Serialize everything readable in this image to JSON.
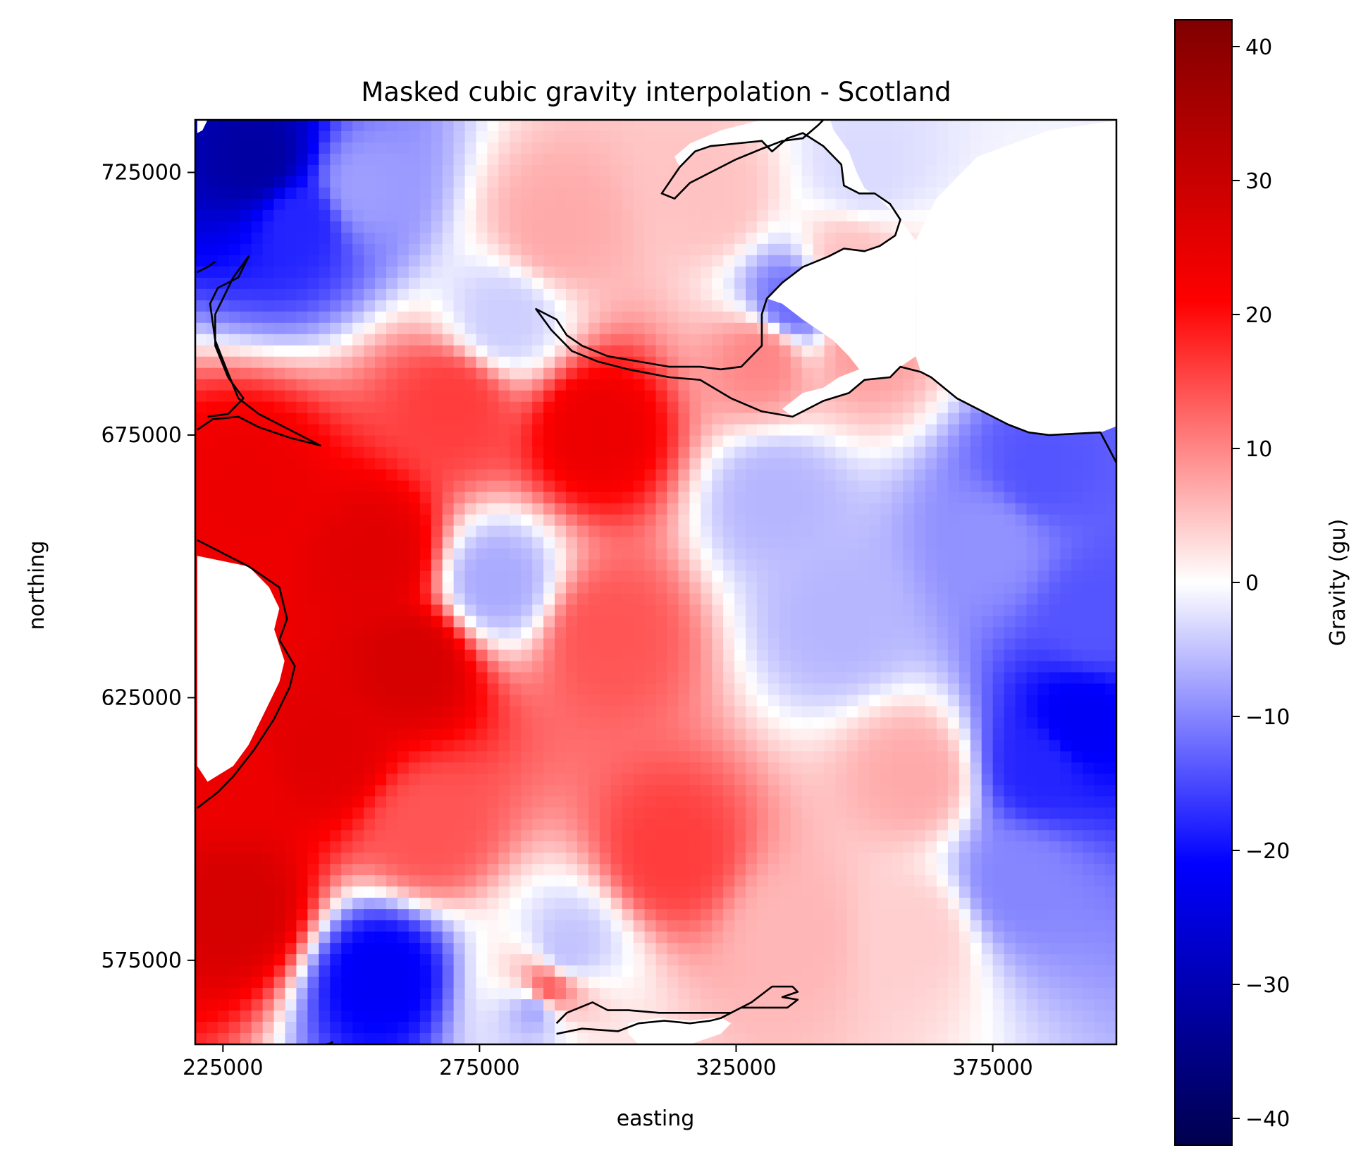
{
  "chart_data": {
    "type": "heatmap",
    "title": "Masked cubic gravity interpolation - Scotland",
    "xlabel": "easting",
    "ylabel": "northing",
    "xlim": [
      219600,
      399100
    ],
    "ylim": [
      559000,
      735000
    ],
    "xticks": [
      225000,
      275000,
      325000,
      375000
    ],
    "xtick_labels": [
      "225000",
      "275000",
      "325000",
      "375000"
    ],
    "yticks": [
      575000,
      625000,
      675000,
      725000
    ],
    "ytick_labels": [
      "575000",
      "625000",
      "675000",
      "725000"
    ],
    "colorbar": {
      "label": "Gravity (gu)",
      "colormap": "seismic",
      "vmin": -42,
      "vmax": 42,
      "ticks": [
        -40,
        -30,
        -20,
        -10,
        0,
        10,
        20,
        30,
        40
      ],
      "tick_labels": [
        "−40",
        "−30",
        "−20",
        "−10",
        "0",
        "10",
        "20",
        "30",
        "40"
      ]
    },
    "colormap_stops": [
      {
        "value": -42,
        "color": "#00004d"
      },
      {
        "value": -21,
        "color": "#0000ff"
      },
      {
        "value": 0,
        "color": "#ffffff"
      },
      {
        "value": 21,
        "color": "#ff0000"
      },
      {
        "value": 42,
        "color": "#800000"
      }
    ],
    "anomalies": [
      {
        "x": 232000,
        "y": 727000,
        "value": -32
      },
      {
        "x": 240000,
        "y": 716000,
        "value": -18
      },
      {
        "x": 252000,
        "y": 722000,
        "value": -8
      },
      {
        "x": 298000,
        "y": 676000,
        "value": 24
      },
      {
        "x": 270000,
        "y": 681000,
        "value": 16
      },
      {
        "x": 255000,
        "y": 652000,
        "value": 26
      },
      {
        "x": 230000,
        "y": 665000,
        "value": 24
      },
      {
        "x": 262000,
        "y": 632000,
        "value": 28
      },
      {
        "x": 245000,
        "y": 615000,
        "value": 26
      },
      {
        "x": 228000,
        "y": 585000,
        "value": 28
      },
      {
        "x": 226000,
        "y": 610000,
        "value": 24
      },
      {
        "x": 265000,
        "y": 600000,
        "value": 14
      },
      {
        "x": 300000,
        "y": 637000,
        "value": 14
      },
      {
        "x": 312000,
        "y": 595000,
        "value": 16
      },
      {
        "x": 288000,
        "y": 569000,
        "value": 14
      },
      {
        "x": 278000,
        "y": 647000,
        "value": -7
      },
      {
        "x": 256000,
        "y": 572000,
        "value": -22
      },
      {
        "x": 286000,
        "y": 566000,
        "value": -8
      },
      {
        "x": 292000,
        "y": 577000,
        "value": -5
      },
      {
        "x": 333000,
        "y": 663000,
        "value": -6
      },
      {
        "x": 336000,
        "y": 700000,
        "value": -12
      },
      {
        "x": 280000,
        "y": 697000,
        "value": -4
      },
      {
        "x": 345000,
        "y": 640000,
        "value": -6
      },
      {
        "x": 384000,
        "y": 668000,
        "value": -14
      },
      {
        "x": 375000,
        "y": 655000,
        "value": -9
      },
      {
        "x": 395000,
        "y": 640000,
        "value": -14
      },
      {
        "x": 392000,
        "y": 620000,
        "value": -22
      },
      {
        "x": 384000,
        "y": 612000,
        "value": -18
      },
      {
        "x": 380000,
        "y": 590000,
        "value": -10
      },
      {
        "x": 350000,
        "y": 725000,
        "value": -3
      },
      {
        "x": 360000,
        "y": 610000,
        "value": 7
      },
      {
        "x": 336000,
        "y": 580000,
        "value": 6
      },
      {
        "x": 360000,
        "y": 580000,
        "value": 4
      },
      {
        "x": 320000,
        "y": 720000,
        "value": 5
      },
      {
        "x": 290000,
        "y": 714000,
        "value": 7
      },
      {
        "x": 350000,
        "y": 692000,
        "value": 8
      },
      {
        "x": 330000,
        "y": 690000,
        "value": 10
      },
      {
        "x": 347000,
        "y": 708000,
        "value": 5
      }
    ],
    "coastlines": [
      [
        [
          220000,
          655000
        ],
        [
          230000,
          650000
        ],
        [
          236000,
          646000
        ],
        [
          237500,
          640000
        ],
        [
          236000,
          636000
        ],
        [
          239000,
          631000
        ],
        [
          238000,
          627000
        ],
        [
          235000,
          621000
        ],
        [
          231000,
          615000
        ],
        [
          227000,
          610000
        ],
        [
          224000,
          607000
        ],
        [
          220000,
          604000
        ]
      ],
      [
        [
          220000,
          676000
        ],
        [
          223000,
          678000
        ],
        [
          228000,
          678500
        ],
        [
          232000,
          676500
        ],
        [
          238000,
          674500
        ],
        [
          244000,
          673000
        ],
        [
          238000,
          676000
        ],
        [
          232000,
          679000
        ],
        [
          228000,
          682000
        ],
        [
          225500,
          688000
        ],
        [
          223500,
          693000
        ],
        [
          222500,
          700000
        ],
        [
          224000,
          703000
        ],
        [
          228000,
          705000
        ],
        [
          230000,
          709000
        ],
        [
          227000,
          705000
        ],
        [
          223500,
          698000
        ],
        [
          223500,
          692000
        ],
        [
          226000,
          686000
        ],
        [
          229000,
          682000
        ],
        [
          226000,
          679000
        ],
        [
          222000,
          678500
        ]
      ],
      [
        [
          220000,
          706000
        ],
        [
          222000,
          707000
        ],
        [
          223500,
          708000
        ]
      ],
      [
        [
          343000,
          736000
        ],
        [
          341000,
          734000
        ],
        [
          338000,
          731500
        ],
        [
          334000,
          731000
        ],
        [
          330000,
          729500
        ],
        [
          325000,
          727500
        ],
        [
          320000,
          725000
        ],
        [
          316000,
          723000
        ],
        [
          313000,
          720000
        ],
        [
          310500,
          721000
        ],
        [
          314000,
          726000
        ],
        [
          317000,
          729000
        ],
        [
          320000,
          730000
        ],
        [
          325000,
          730500
        ],
        [
          330000,
          731000
        ],
        [
          332000,
          729000
        ],
        [
          335000,
          731500
        ],
        [
          338000,
          732500
        ],
        [
          342000,
          730000
        ],
        [
          344000,
          728000
        ],
        [
          345500,
          726500
        ],
        [
          346000,
          722500
        ],
        [
          349000,
          721000
        ],
        [
          352000,
          721000
        ],
        [
          355000,
          719000
        ],
        [
          357000,
          716000
        ],
        [
          356000,
          713000
        ],
        [
          353000,
          711000
        ],
        [
          350000,
          710000
        ],
        [
          346000,
          710500
        ],
        [
          343000,
          709000
        ],
        [
          338000,
          707000
        ],
        [
          334000,
          704000
        ],
        [
          331000,
          701000
        ],
        [
          330000,
          698000
        ],
        [
          330000,
          692000
        ],
        [
          326000,
          688000
        ],
        [
          322000,
          687500
        ],
        [
          318000,
          688000
        ],
        [
          312000,
          688000
        ],
        [
          306000,
          689000
        ],
        [
          300000,
          690000
        ],
        [
          295000,
          692000
        ],
        [
          292000,
          694000
        ],
        [
          290000,
          697000
        ],
        [
          286000,
          699000
        ],
        [
          289000,
          695000
        ],
        [
          293000,
          691000
        ],
        [
          298000,
          689000
        ],
        [
          304000,
          687500
        ],
        [
          312000,
          686000
        ],
        [
          318000,
          685500
        ],
        [
          324000,
          682000
        ],
        [
          330000,
          679500
        ],
        [
          336000,
          678500
        ],
        [
          342000,
          681500
        ],
        [
          347000,
          683000
        ],
        [
          350000,
          685500
        ],
        [
          355000,
          686000
        ],
        [
          357000,
          688000
        ],
        [
          361000,
          687000
        ],
        [
          363000,
          686000
        ],
        [
          368000,
          682000
        ],
        [
          374000,
          679000
        ],
        [
          378000,
          677000
        ],
        [
          382000,
          675500
        ],
        [
          386000,
          675000
        ],
        [
          396000,
          675500
        ],
        [
          399500,
          669000
        ],
        [
          404000,
          660000
        ]
      ],
      [
        [
          290000,
          561000
        ],
        [
          295000,
          562000
        ],
        [
          302000,
          561500
        ],
        [
          306000,
          563000
        ],
        [
          311000,
          563500
        ],
        [
          316000,
          563000
        ],
        [
          320000,
          563500
        ],
        [
          322000,
          564000
        ],
        [
          326000,
          566000
        ],
        [
          331000,
          566000
        ],
        [
          335000,
          566000
        ],
        [
          337000,
          567500
        ],
        [
          334000,
          568000
        ],
        [
          337000,
          569000
        ],
        [
          336000,
          570000
        ],
        [
          332000,
          570000
        ],
        [
          328000,
          567000
        ],
        [
          324000,
          565000
        ],
        [
          318000,
          565000
        ],
        [
          310000,
          565000
        ],
        [
          304000,
          565500
        ],
        [
          300000,
          565500
        ],
        [
          297000,
          567000
        ],
        [
          292000,
          565000
        ],
        [
          290000,
          563000
        ]
      ],
      [
        [
          245000,
          559000
        ],
        [
          246000,
          559200
        ],
        [
          246400,
          559500
        ]
      ]
    ],
    "masked_regions": [
      [
        [
          343000,
          736000
        ],
        [
          344000,
          733000
        ],
        [
          347000,
          729000
        ],
        [
          348500,
          725000
        ],
        [
          350000,
          722000
        ],
        [
          353000,
          720000
        ],
        [
          357000,
          716000
        ],
        [
          360000,
          712000
        ],
        [
          360000,
          690000
        ],
        [
          357000,
          688000
        ],
        [
          355000,
          686000
        ],
        [
          350000,
          685500
        ],
        [
          347000,
          683000
        ],
        [
          342000,
          681500
        ],
        [
          336000,
          678500
        ],
        [
          334000,
          680000
        ],
        [
          338000,
          683000
        ],
        [
          342000,
          684000
        ],
        [
          345000,
          686000
        ],
        [
          349000,
          687500
        ],
        [
          347000,
          690000
        ],
        [
          344000,
          693000
        ],
        [
          338000,
          697000
        ],
        [
          334000,
          700000
        ],
        [
          331000,
          701000
        ],
        [
          334000,
          704000
        ],
        [
          338000,
          707000
        ],
        [
          343000,
          709000
        ],
        [
          346000,
          710500
        ],
        [
          350000,
          710000
        ],
        [
          353000,
          711000
        ],
        [
          356000,
          713000
        ],
        [
          357000,
          716000
        ],
        [
          355000,
          719000
        ],
        [
          352000,
          721000
        ],
        [
          349000,
          721000
        ],
        [
          346000,
          722500
        ],
        [
          345500,
          726500
        ],
        [
          344000,
          728000
        ],
        [
          342000,
          730000
        ],
        [
          338000,
          732500
        ],
        [
          335000,
          731500
        ],
        [
          332000,
          729000
        ],
        [
          330000,
          731000
        ],
        [
          325000,
          730500
        ],
        [
          320000,
          730000
        ],
        [
          317000,
          729000
        ],
        [
          314000,
          726000
        ],
        [
          313000,
          728000
        ],
        [
          316000,
          730500
        ],
        [
          322000,
          733000
        ],
        [
          330000,
          735000
        ],
        [
          338000,
          736000
        ]
      ],
      [
        [
          360000,
          690000
        ],
        [
          360000,
          712000
        ],
        [
          364000,
          720000
        ],
        [
          372000,
          728000
        ],
        [
          386000,
          733000
        ],
        [
          400000,
          735000
        ],
        [
          400000,
          677000
        ],
        [
          396000,
          675500
        ],
        [
          386000,
          675000
        ],
        [
          382000,
          675500
        ],
        [
          378000,
          677000
        ],
        [
          374000,
          679000
        ],
        [
          368000,
          682000
        ],
        [
          363000,
          686000
        ],
        [
          361000,
          687000
        ]
      ],
      [
        [
          399500,
          669000
        ],
        [
          400000,
          668000
        ],
        [
          400000,
          670000
        ]
      ],
      [
        [
          220000,
          652000
        ],
        [
          230000,
          650000
        ],
        [
          234000,
          646000
        ],
        [
          236000,
          642000
        ],
        [
          235000,
          638000
        ],
        [
          237000,
          632000
        ],
        [
          236000,
          628000
        ],
        [
          233000,
          622000
        ],
        [
          230000,
          616000
        ],
        [
          227000,
          612000
        ],
        [
          222000,
          609000
        ],
        [
          220000,
          612000
        ]
      ],
      [
        [
          220000,
          735000
        ],
        [
          222000,
          735000
        ],
        [
          221000,
          733000
        ],
        [
          220000,
          732500
        ]
      ],
      [
        [
          304000,
          561000
        ],
        [
          304000,
          563000
        ],
        [
          306000,
          563500
        ],
        [
          310000,
          564000
        ],
        [
          316000,
          563500
        ],
        [
          322000,
          564200
        ],
        [
          324000,
          563000
        ],
        [
          322000,
          561000
        ],
        [
          316000,
          559000
        ],
        [
          306000,
          559000
        ]
      ]
    ]
  }
}
